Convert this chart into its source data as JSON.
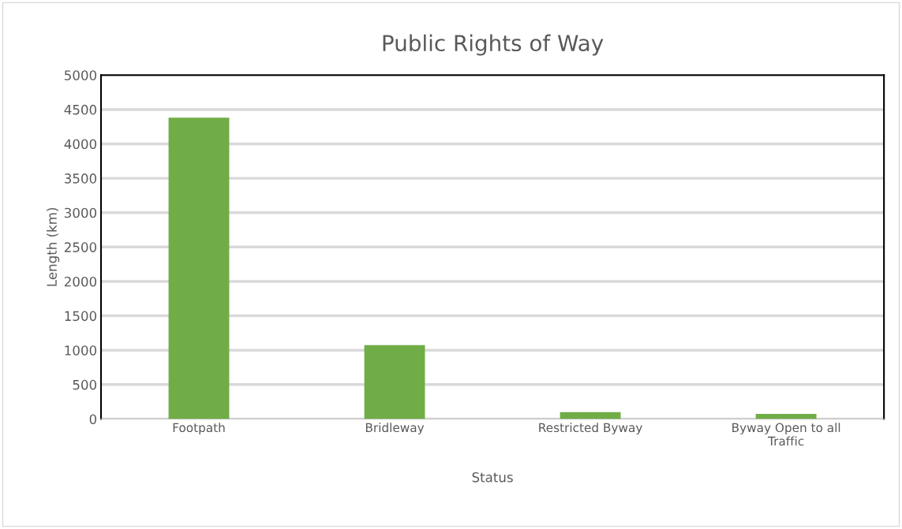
{
  "chart_data": {
    "type": "bar",
    "title": "Public Rights of Way",
    "xlabel": "Status",
    "ylabel": "Length (km)",
    "categories": [
      "Footpath",
      "Bridleway",
      "Restricted Byway",
      "Byway Open to all\nTraffic"
    ],
    "values": [
      4380,
      1075,
      100,
      75
    ],
    "color": "#70ad47",
    "ylim": [
      0,
      5000
    ],
    "yticks": [
      0,
      500,
      1000,
      1500,
      2000,
      2500,
      3000,
      3500,
      4000,
      4500,
      5000
    ],
    "grid": "y"
  }
}
